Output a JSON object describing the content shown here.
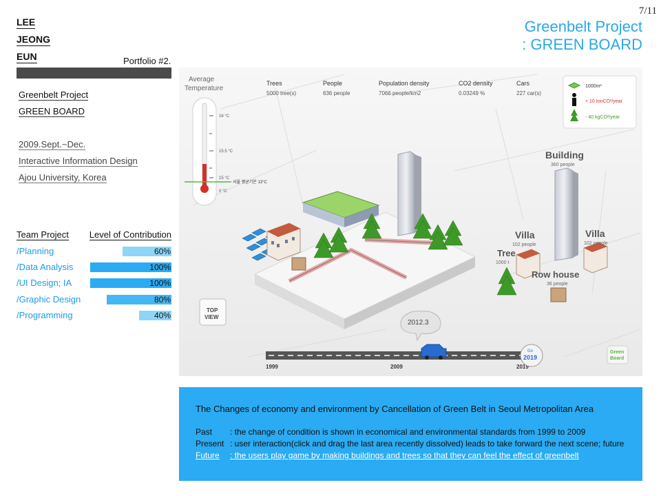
{
  "page_number": "7/11",
  "title": {
    "line1": "Greenbelt Project",
    "line2": ": GREEN BOARD"
  },
  "author": {
    "line1": "LEE",
    "line2": "JEONG",
    "line3": "EUN"
  },
  "portfolio_label": "Portfolio #2.",
  "project": {
    "name": "Greenbelt Project",
    "subtitle": "GREEN BOARD"
  },
  "info": {
    "date": "2009.Sept.~Dec.",
    "course": "Interactive Information Design",
    "school": "Ajou University, Korea"
  },
  "contribution": {
    "header_left": "Team Project",
    "header_right": "Level of Contribution",
    "rows": [
      {
        "label": "/Planning",
        "value": "60%",
        "level": 0.6,
        "color": "#8dd6f8"
      },
      {
        "label": "/Data Analysis",
        "value": "100%",
        "level": 1.0,
        "color": "#2aabf3"
      },
      {
        "label": "/UI Design; IA",
        "value": "100%",
        "level": 1.0,
        "color": "#2aabf3"
      },
      {
        "label": "/Graphic Design",
        "value": "80%",
        "level": 0.8,
        "color": "#45b7f2"
      },
      {
        "label": "/Programming",
        "value": "40%",
        "level": 0.4,
        "color": "#8dd6f8"
      }
    ]
  },
  "hero": {
    "avg_temp_label_1": "Average",
    "avg_temp_label_2": "Temperature",
    "temp_ticks": [
      "16 °C",
      "15.5 °C",
      "15 °C",
      "0 °C"
    ],
    "temp_note": "서울 평균기온 13°C",
    "stats": [
      {
        "label": "Trees",
        "value": "5000 tree(s)"
      },
      {
        "label": "People",
        "value": "636 people"
      },
      {
        "label": "Population density",
        "value": "7066 people/km2"
      },
      {
        "label": "CO2 density",
        "value": "0.03249 %"
      },
      {
        "label": "Cars",
        "value": "227 car(s)"
      }
    ],
    "legend": [
      {
        "text": "1000m²",
        "icon": "area-icon"
      },
      {
        "text": "+ 10 tonCO²/year",
        "icon": "person-icon"
      },
      {
        "text": "- 40 kgCO²/year",
        "icon": "tree-icon"
      }
    ],
    "labels": {
      "building": "Building",
      "building_sub": "360 people",
      "villa_left": "Villa",
      "villa_left_sub": "102 people",
      "villa_right": "Villa",
      "villa_right_sub": "102 people",
      "tree": "Tree",
      "tree_sub": "1000 t",
      "rowhouse": "Row house",
      "rowhouse_sub": "36 people"
    },
    "top_view": {
      "line1": "TOP",
      "line2": "VIEW"
    },
    "bubble": "2012.3",
    "timeline": {
      "start": "1999",
      "mid": "2009",
      "end": "2019"
    },
    "go_button": {
      "line1": "Go",
      "line2": "2019"
    },
    "logo": {
      "line1": "Green",
      "line2": "Board"
    },
    "colors": {
      "accent": "#2aabf3",
      "tree": "#3e9a28",
      "road": "#555555",
      "block": "#f4f4f4"
    }
  },
  "description": {
    "title": "The Changes of economy and environment  by Cancellation of Green Belt in Seoul Metropolitan Area",
    "past_key": "Past",
    "past_text": ": the change of condition is shown in economical and environmental standards from 1999 to 2009",
    "present_key": "Present",
    "present_text": ": user interaction(click and drag the last area recently dissolved) leads to take forward the next scene; future",
    "future_key": "Future",
    "future_text": ": the users play game by making buildings and trees so that they can feel the effect of greenbelt"
  }
}
